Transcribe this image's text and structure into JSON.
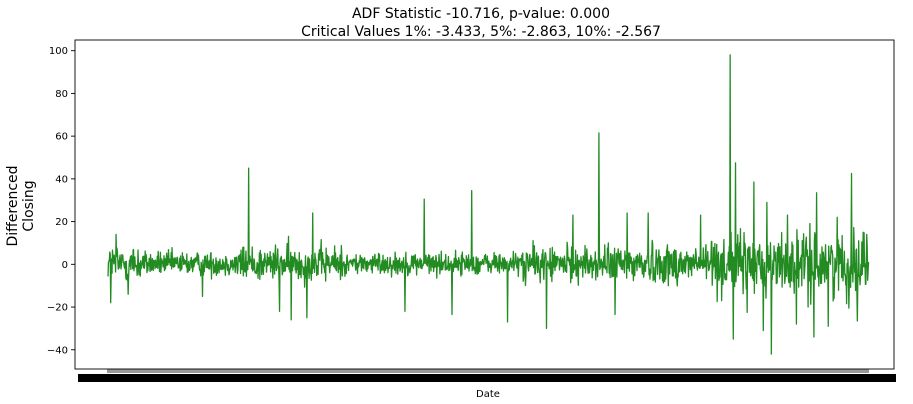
{
  "chart_data": {
    "type": "line",
    "title_lines": [
      "ADF Statistic -10.716, p-value: 0.000",
      "Critical Values 1%: -3.433, 5%: -2.863, 10%: -2.567"
    ],
    "xlabel": "Date",
    "ylabel_lines": [
      "Differenced",
      "Closing"
    ],
    "ylim": [
      -49,
      105
    ],
    "yticks": [
      -40,
      -20,
      0,
      20,
      40,
      60,
      80,
      100
    ],
    "grid": false,
    "legend": "none",
    "series": [
      {
        "color": "#228b22",
        "n_points": 1700,
        "spikes": [
          [
            -0.5,
            -18
          ],
          [
            0.4,
            14
          ],
          [
            2.5,
            -14
          ],
          [
            15.3,
            -15
          ],
          [
            23.2,
            45
          ],
          [
            28.5,
            -22
          ],
          [
            30.5,
            -26
          ],
          [
            33.2,
            -25
          ],
          [
            34.2,
            24
          ],
          [
            50.1,
            -22
          ],
          [
            53.4,
            30.5
          ],
          [
            58.2,
            -23.5
          ],
          [
            61.6,
            34.5
          ],
          [
            67.8,
            -27
          ],
          [
            74.5,
            -30
          ],
          [
            79.0,
            23
          ],
          [
            83.5,
            61.5
          ],
          [
            86.3,
            -23.5
          ],
          [
            88.4,
            24
          ],
          [
            92.0,
            24
          ],
          [
            101.0,
            23
          ],
          [
            106.1,
            98
          ],
          [
            106.6,
            -35
          ],
          [
            107.0,
            47.5
          ],
          [
            109.0,
            -22.5
          ],
          [
            110.2,
            38.5
          ],
          [
            111.8,
            -31
          ],
          [
            112.4,
            29
          ],
          [
            113.2,
            -42
          ],
          [
            116.0,
            23
          ],
          [
            117.5,
            -28
          ],
          [
            119.5,
            -20
          ],
          [
            120.5,
            -34
          ],
          [
            121.0,
            33.5
          ],
          [
            123.0,
            -29
          ],
          [
            124.5,
            22
          ],
          [
            126.5,
            -20.5
          ],
          [
            127.0,
            42.5
          ],
          [
            128.0,
            -26.5
          ],
          [
            129.0,
            15
          ],
          [
            129.6,
            14
          ]
        ]
      }
    ]
  }
}
